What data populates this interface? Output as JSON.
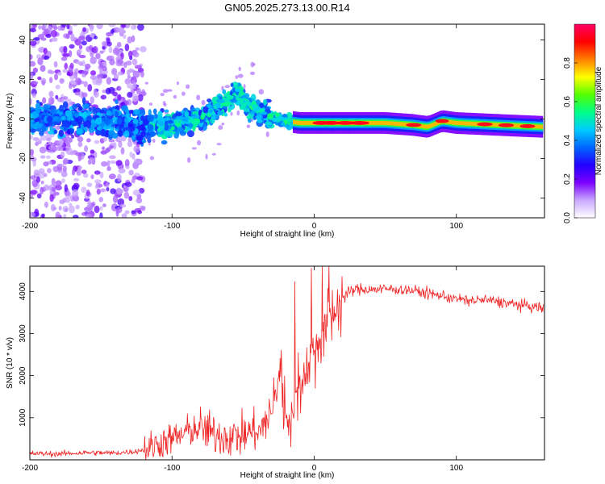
{
  "figure_title": "GN05.2025.273.13.00.R14",
  "chart_data": [
    {
      "type": "heatmap",
      "title": "GN05.2025.273.13.00.R14",
      "xlabel": "Height of straight line (km)",
      "ylabel": "Frequency (Hz)",
      "xlim": [
        -200,
        162
      ],
      "ylim": [
        -50,
        48
      ],
      "xticks": [
        -200,
        -100,
        0,
        100
      ],
      "yticks": [
        -40,
        -20,
        0,
        20,
        40
      ],
      "grid": false,
      "colorbar": {
        "label": "Normalized spectral amplitude",
        "range": [
          0,
          1
        ],
        "ticks": [
          0.0,
          0.2,
          0.4,
          0.6,
          0.8
        ],
        "tick_labels": [
          "0.0",
          "0.2",
          "0.4",
          "0.6",
          "0.8"
        ],
        "colormap": [
          "#ffffff",
          "#c9a8ff",
          "#7b00ff",
          "#2200ff",
          "#0066ff",
          "#00ccff",
          "#00ff88",
          "#55ff00",
          "#ffff00",
          "#ff7f00",
          "#ff0000",
          "#ff0066"
        ]
      },
      "ridge": {
        "x": [
          -200,
          -150,
          -120,
          -100,
          -80,
          -70,
          -60,
          -55,
          -50,
          -40,
          -30,
          -20,
          -10,
          0,
          20,
          50,
          70,
          80,
          90,
          100,
          130,
          162
        ],
        "frequency": [
          0,
          0,
          -4,
          -3,
          0,
          5,
          10,
          13,
          8,
          4,
          1,
          -1,
          -2,
          -2,
          -2,
          -2,
          -3,
          -4,
          -1,
          -2,
          -3,
          -4
        ]
      }
    },
    {
      "type": "line",
      "xlabel": "Height of straight line (km)",
      "ylabel": "SNR (10 * v/v)",
      "xlim": [
        -200,
        162
      ],
      "ylim": [
        0,
        4600
      ],
      "xticks": [
        -200,
        -100,
        0,
        100
      ],
      "yticks": [
        1000,
        2000,
        3000,
        4000
      ],
      "grid": false,
      "series": [
        {
          "name": "SNR",
          "color": "#ee2222",
          "x": [
            -200,
            -180,
            -160,
            -140,
            -125,
            -115,
            -105,
            -95,
            -88,
            -80,
            -70,
            -60,
            -50,
            -42,
            -35,
            -28,
            -24,
            -20,
            -15,
            -10,
            -5,
            0,
            5,
            10,
            15,
            20,
            25,
            30,
            40,
            50,
            60,
            70,
            80,
            90,
            100,
            110,
            120,
            130,
            140,
            150,
            162
          ],
          "y": [
            150,
            140,
            170,
            160,
            200,
            300,
            450,
            550,
            700,
            750,
            600,
            550,
            580,
            700,
            800,
            1400,
            2200,
            900,
            1300,
            1700,
            2300,
            2600,
            2900,
            3300,
            3600,
            3850,
            4000,
            4050,
            4050,
            4060,
            4050,
            4020,
            3950,
            3900,
            3820,
            3780,
            3800,
            3750,
            3700,
            3650,
            3600
          ]
        }
      ]
    }
  ]
}
